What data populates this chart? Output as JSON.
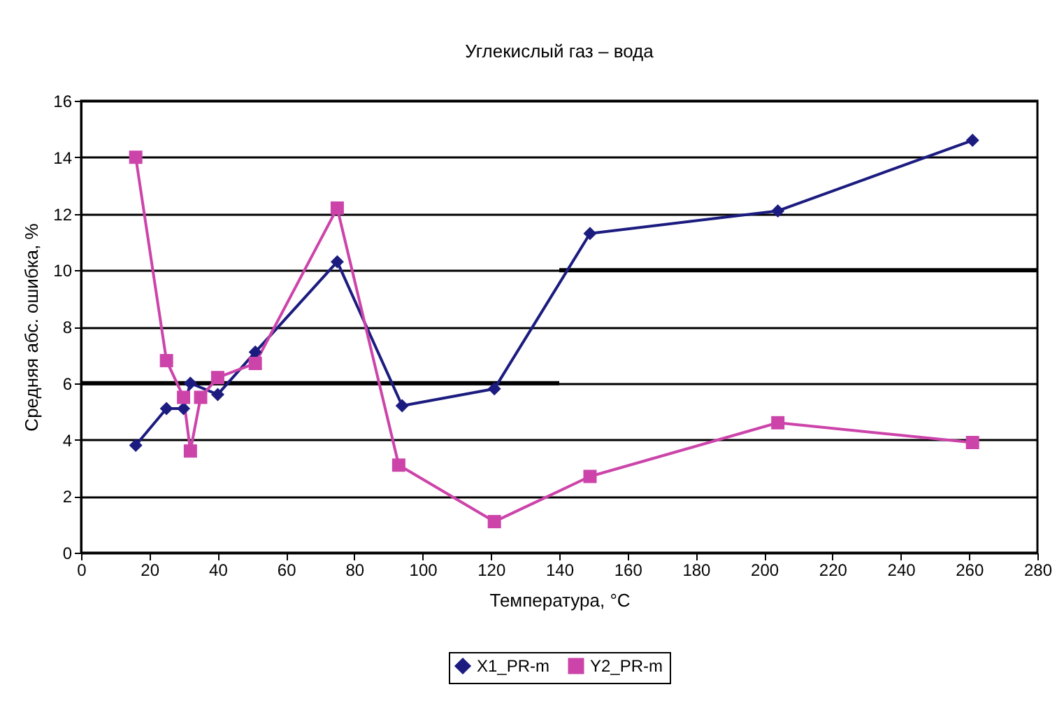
{
  "chart_data": {
    "type": "line",
    "title": "Углекислый газ – вода",
    "xlabel": "Температура, °C",
    "ylabel": "Средняя абс. ошибка, %",
    "xlim": [
      0,
      280
    ],
    "xticks": [
      0,
      20,
      40,
      60,
      80,
      100,
      120,
      140,
      160,
      180,
      200,
      220,
      240,
      260,
      280
    ],
    "ylim": [
      0,
      16
    ],
    "yticks": [
      0,
      2,
      4,
      6,
      8,
      10,
      12,
      14,
      16
    ],
    "grid": "y",
    "legend": "bottom",
    "series": [
      {
        "name": "X1_PR-m",
        "color": "#1c1c80",
        "marker": "diamond",
        "x": [
          16,
          25,
          30,
          32,
          40,
          51,
          75,
          94,
          121,
          149,
          204,
          261
        ],
        "values": [
          3.8,
          5.1,
          5.1,
          6.0,
          5.6,
          7.1,
          10.3,
          5.2,
          5.8,
          11.3,
          12.1,
          14.6
        ]
      },
      {
        "name": "Y2_PR-m",
        "color": "#cc44aa",
        "marker": "square",
        "x": [
          16,
          25,
          30,
          32,
          35,
          40,
          51,
          75,
          93,
          121,
          149,
          204,
          261
        ],
        "values": [
          14.0,
          6.8,
          5.5,
          3.6,
          5.5,
          6.2,
          6.7,
          12.2,
          3.1,
          1.1,
          2.7,
          4.6,
          3.9
        ]
      },
      {
        "color": "#000000",
        "marker": "none",
        "x": [
          0,
          140
        ],
        "values": [
          6,
          6
        ]
      },
      {
        "color": "#000000",
        "marker": "none",
        "x": [
          140,
          280
        ],
        "values": [
          10,
          10
        ]
      }
    ]
  }
}
